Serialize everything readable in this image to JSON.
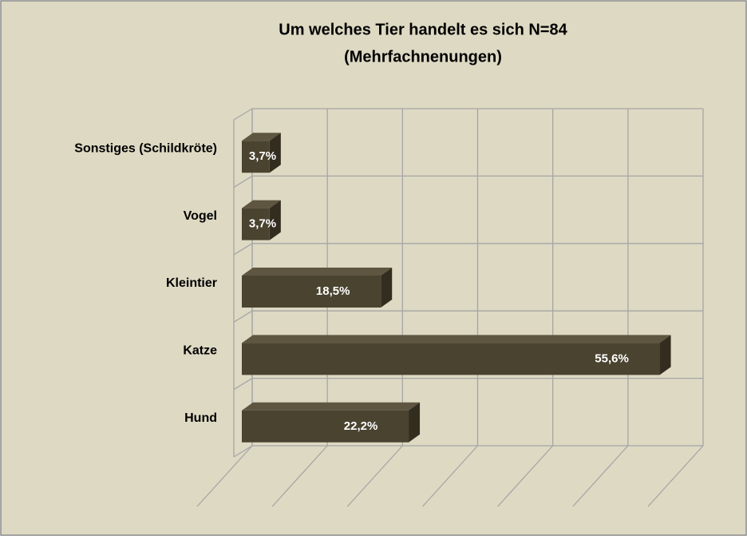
{
  "chart_data": {
    "type": "bar3d",
    "title": "Um welches Tier handelt es sich N=84",
    "subtitle": "(Mehrfachnenungen)",
    "categories": [
      "Hund",
      "Katze",
      "Kleintier",
      "Vogel",
      "Sonstiges (Schildkröte)"
    ],
    "values": [
      22.2,
      55.6,
      18.5,
      3.7,
      3.7
    ],
    "value_labels": [
      "22,2%",
      "55,6%",
      "18,5%",
      "3,7%",
      "3,7%"
    ],
    "color": "#4a4330",
    "xlim": [
      0,
      60
    ],
    "xticks": [
      0,
      10,
      20,
      30,
      40,
      50,
      60
    ],
    "grid": true
  }
}
